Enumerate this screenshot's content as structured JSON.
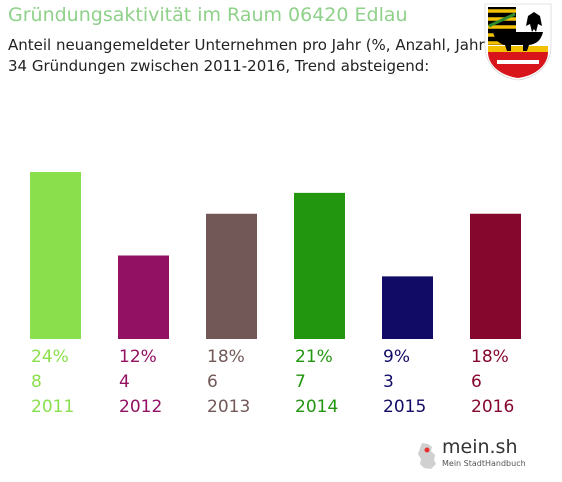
{
  "header": {
    "title": "Gründungsaktivität im Raum 06420 Edlau",
    "subtitle_line1": "Anteil neuangemeldeter Unternehmen pro Jahr (%, Anzahl, Jahr)",
    "subtitle_line2": "34 Gründungen zwischen 2011-2016, Trend absteigend:"
  },
  "chart_data": {
    "type": "bar",
    "categories": [
      "2011",
      "2012",
      "2013",
      "2014",
      "2015",
      "2016"
    ],
    "values": [
      24,
      12,
      18,
      21,
      9,
      18
    ],
    "percent_labels": [
      "24%",
      "12%",
      "18%",
      "21%",
      "9%",
      "18%"
    ],
    "counts": [
      8,
      4,
      6,
      7,
      3,
      6
    ],
    "colors": [
      "#8ae04c",
      "#921163",
      "#735858",
      "#22960f",
      "#120b66",
      "#85072e"
    ],
    "ylim": [
      0,
      24
    ],
    "grid": false
  },
  "logo": {
    "name": "mein.sh",
    "tagline": "Mein StadtHandbuch",
    "icon": "germany-map-icon"
  },
  "crest": {
    "icon": "coat-of-arms-icon",
    "colors": [
      "#000000",
      "#f2c200",
      "#d8151b",
      "#ffffff"
    ]
  }
}
